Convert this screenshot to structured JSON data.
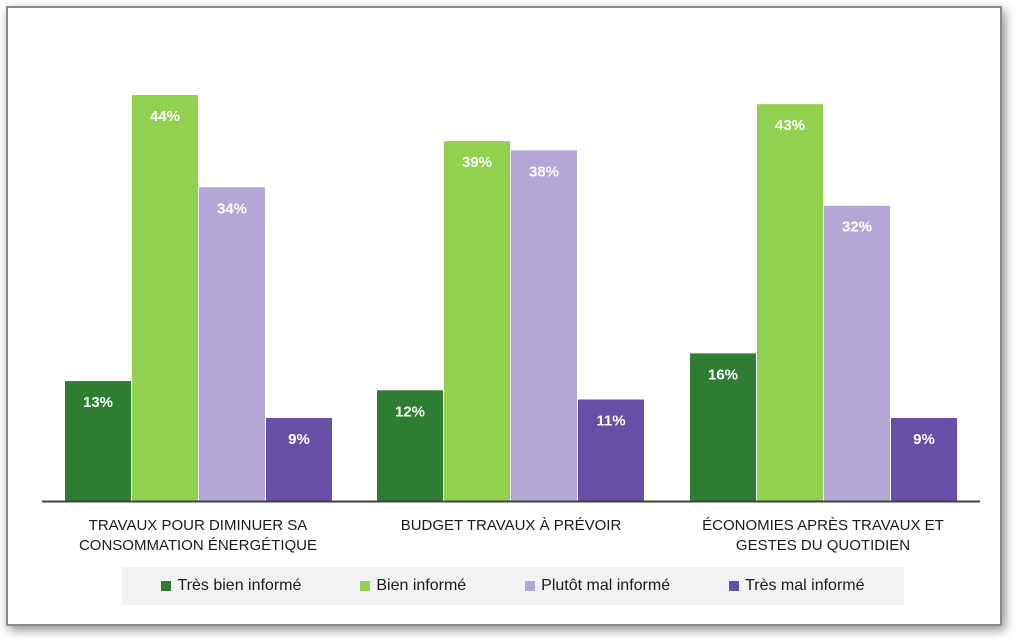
{
  "chart_data": {
    "type": "bar",
    "categories": [
      "TRAVAUX POUR DIMINUER SA CONSOMMATION ÉNERGÉTIQUE",
      "BUDGET TRAVAUX À PRÉVOIR",
      "ÉCONOMIES APRÈS TRAVAUX ET GESTES DU QUOTIDIEN"
    ],
    "category_lines": [
      [
        "TRAVAUX POUR DIMINUER SA",
        "CONSOMMATION ÉNERGÉTIQUE"
      ],
      [
        "BUDGET TRAVAUX À PRÉVOIR"
      ],
      [
        "ÉCONOMIES APRÈS TRAVAUX ET",
        "GESTES DU QUOTIDIEN"
      ]
    ],
    "series": [
      {
        "name": "Très bien informé",
        "color": "#2e7d32",
        "values": [
          13,
          12,
          16
        ]
      },
      {
        "name": "Bien informé",
        "color": "#92d050",
        "values": [
          44,
          39,
          43
        ]
      },
      {
        "name": "Plutôt mal informé",
        "color": "#b4a7d6",
        "values": [
          34,
          38,
          32
        ]
      },
      {
        "name": "Très mal informé",
        "color": "#674ea7",
        "values": [
          9,
          11,
          9
        ]
      }
    ],
    "value_suffix": "%",
    "ylim": [
      0,
      44
    ],
    "grid": false,
    "legend_position": "bottom",
    "title": "",
    "xlabel": "",
    "ylabel": ""
  }
}
